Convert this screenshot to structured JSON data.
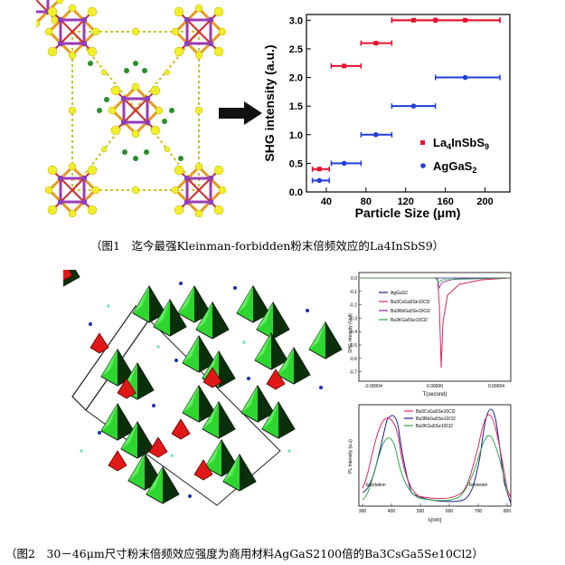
{
  "figure1": {
    "caption": "（图1　迄今最强Kleinman-forbidden粉末倍频效应的La4InSbS9）",
    "chart_data": {
      "type": "scatter",
      "xlabel": "Particle Size (μm)",
      "ylabel": "SHG intensity (a.u.)",
      "xlim": [
        20,
        225
      ],
      "ylim": [
        0,
        3.1
      ],
      "xticks": [
        "40",
        "80",
        "120",
        "160",
        "200"
      ],
      "yticks": [
        "0.0",
        "0.5",
        "1.0",
        "1.5",
        "2.0",
        "2.5",
        "3.0"
      ],
      "legend_position": "bottom-right",
      "series": [
        {
          "name": "La4InSbS9",
          "legend_text": "La",
          "legend_sub1": "4",
          "legend_mid": "InSbS",
          "legend_sub2": "9",
          "color": "#e8112d",
          "marker": "square",
          "points": [
            {
              "x": 33,
              "y": 0.4,
              "xmin": 26,
              "xmax": 43
            },
            {
              "x": 58,
              "y": 2.2,
              "xmin": 45,
              "xmax": 75
            },
            {
              "x": 90,
              "y": 2.6,
              "xmin": 75,
              "xmax": 106
            },
            {
              "x": 128,
              "y": 3.0,
              "xmin": 106,
              "xmax": 150
            },
            {
              "x": 150,
              "y": 3.0,
              "xmin": 106,
              "xmax": 215
            },
            {
              "x": 180,
              "y": 3.0,
              "xmin": 150,
              "xmax": 215
            }
          ]
        },
        {
          "name": "AgGaS2",
          "legend_text": "AgGaS",
          "legend_sub1": "2",
          "color": "#1f3fd6",
          "marker": "circle",
          "points": [
            {
              "x": 33,
              "y": 0.2,
              "xmin": 26,
              "xmax": 43
            },
            {
              "x": 58,
              "y": 0.5,
              "xmin": 45,
              "xmax": 75
            },
            {
              "x": 90,
              "y": 1.0,
              "xmin": 75,
              "xmax": 106
            },
            {
              "x": 128,
              "y": 1.5,
              "xmin": 106,
              "xmax": 150
            },
            {
              "x": 180,
              "y": 2.0,
              "xmin": 150,
              "xmax": 215
            }
          ]
        }
      ]
    }
  },
  "figure2": {
    "caption": "（图2　30－46μm尺寸粉末倍频效应强度为商用材料AgGaS2100倍的Ba3CsGa5Se10Cl2）",
    "chart_data": [
      {
        "type": "line",
        "xlabel": "T(second)",
        "ylabel": "SHG intensity (Volt)",
        "xticks": [
          "-0.00004",
          "0.00000",
          "0.00004"
        ],
        "yticks": [
          "0.0",
          "-0.1",
          "-0.2",
          "-0.3",
          "-0.4",
          "-0.5",
          "-0.6",
          "-0.7"
        ],
        "ylim": [
          -0.78,
          0.02
        ],
        "legend": [
          "AgGaS2",
          "Ba3CsGa5Se10Cl2",
          "Ba3RbGa5Se10Cl2",
          "Ba3KGa5Se10Cl2"
        ],
        "legend_colors": [
          "#1b1f8a",
          "#e0245e",
          "#8b2d9a",
          "#2aa84a"
        ]
      },
      {
        "type": "line",
        "xlabel": "λ(nm)",
        "ylabel": "PL Intensity (a.u)",
        "xticks": [
          "300",
          "400",
          "500",
          "600",
          "700",
          "800"
        ],
        "annotations": [
          "Excitation",
          "Emission"
        ],
        "legend": [
          "Ba3CsGa5Se10Cl2",
          "Ba3RbGa5Se10Cl2",
          "Ba3KGa5Se10Cl2"
        ],
        "legend_colors": [
          "#e0245e",
          "#1b1f8a",
          "#2aa84a"
        ]
      }
    ]
  }
}
